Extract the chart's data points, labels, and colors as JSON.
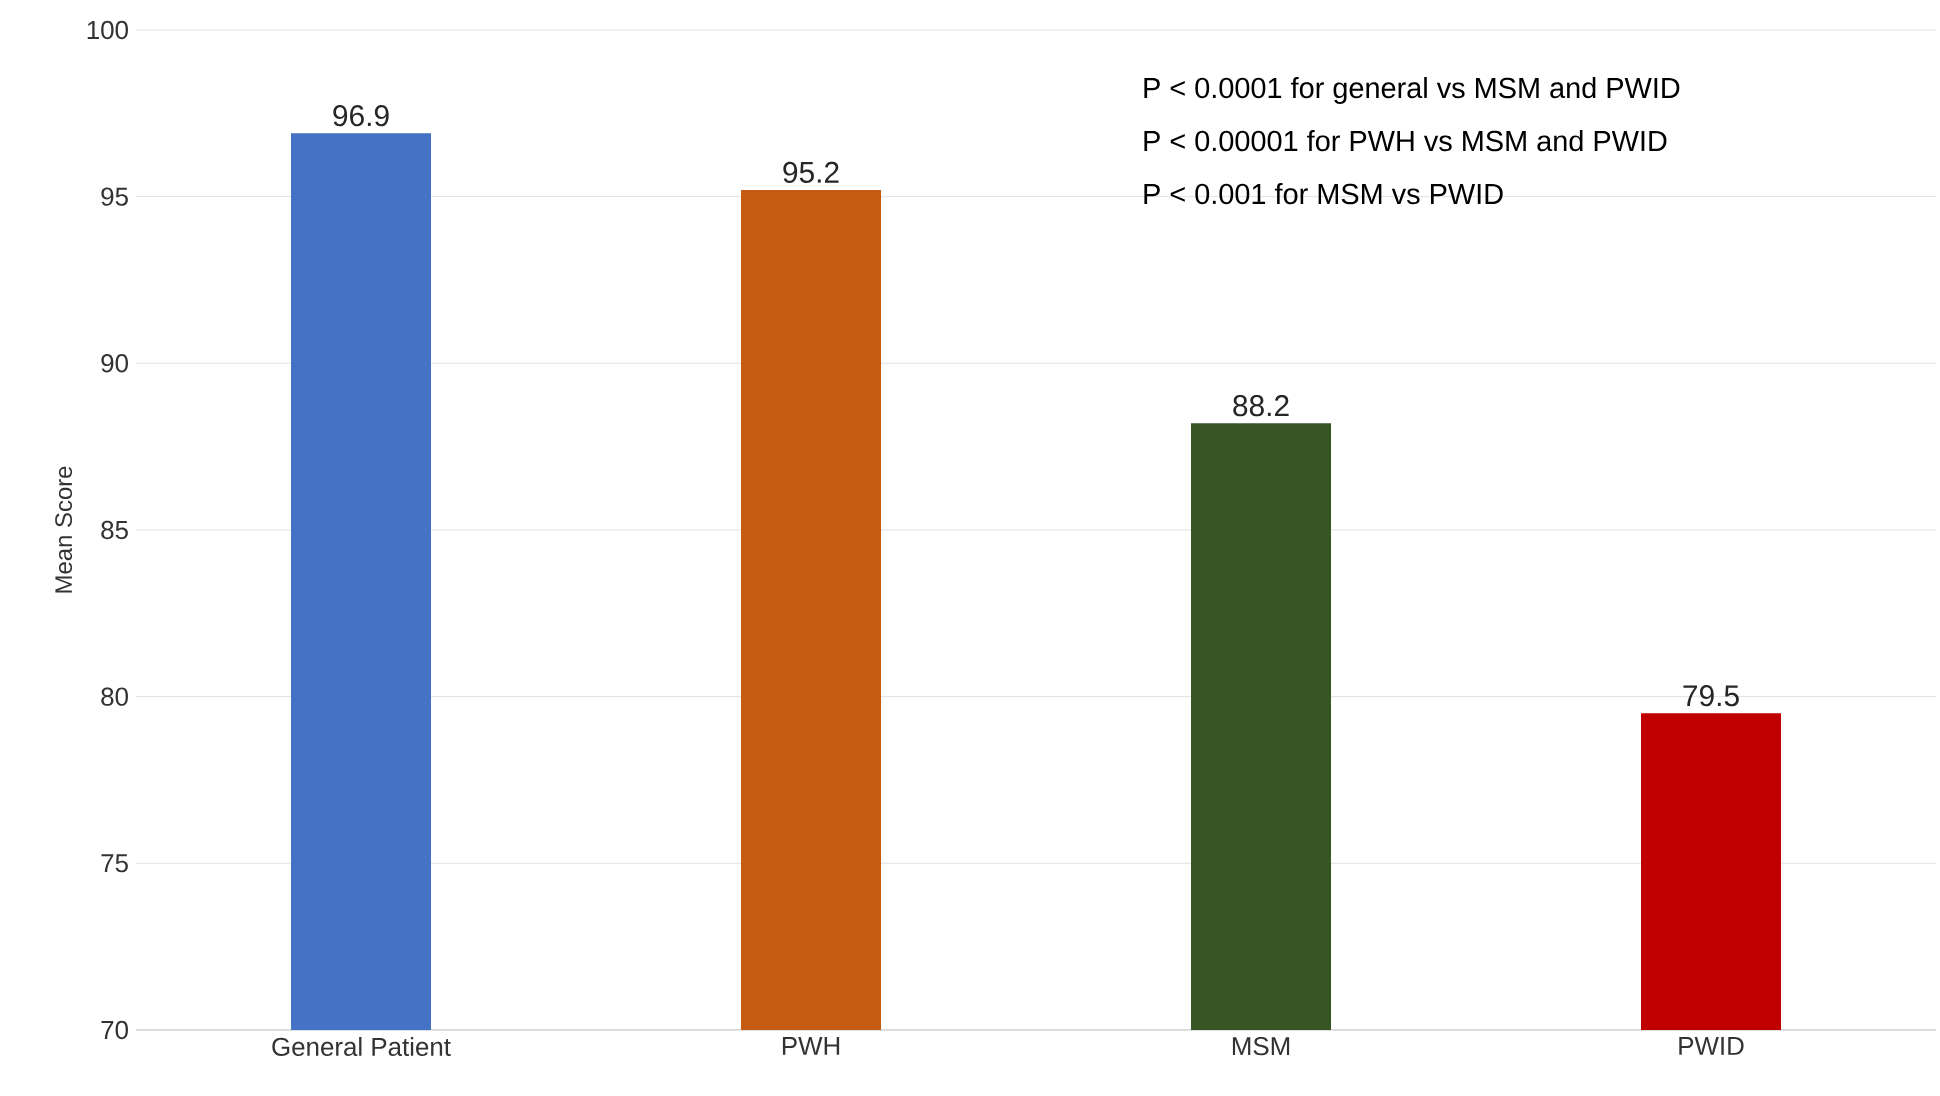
{
  "chart_data": {
    "type": "bar",
    "ylabel": "Mean Score",
    "categories": [
      "General Patient",
      "PWH",
      "MSM",
      "PWID"
    ],
    "values": [
      96.9,
      95.2,
      88.2,
      79.5
    ],
    "colors": [
      "#4472c4",
      "#c55a11",
      "#375623",
      "#c00000"
    ],
    "ylim": [
      70,
      100
    ],
    "yticks": [
      70,
      75,
      80,
      85,
      90,
      95,
      100
    ],
    "grid": "y",
    "data_labels": true,
    "annotations": [
      "P < 0.0001 for general vs MSM and PWID",
      "P < 0.00001 for PWH vs MSM and PWID",
      "P < 0.001 for MSM vs PWID"
    ]
  }
}
